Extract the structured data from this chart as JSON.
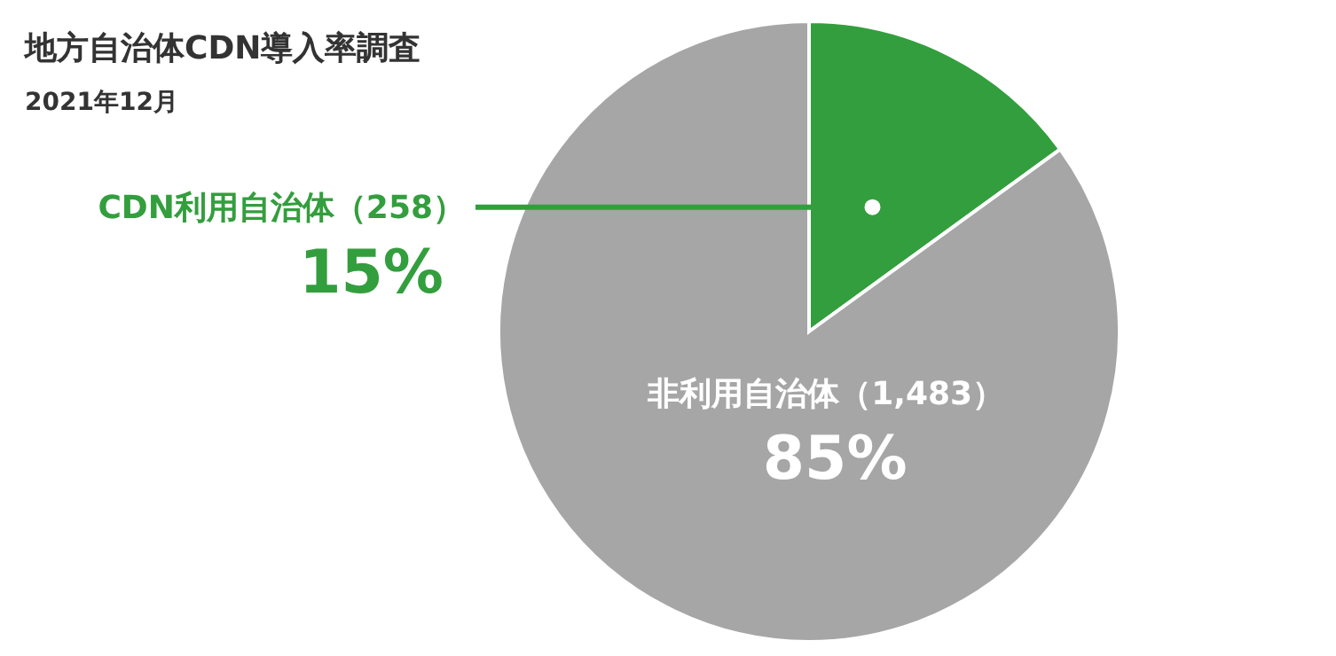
{
  "chart_data": {
    "type": "pie",
    "title": "地方自治体CDN導入率調査",
    "subtitle": "2021年12月",
    "categories": [
      "CDN利用自治体（258）",
      "非利用自治体（1,483）"
    ],
    "values": [
      15,
      85
    ],
    "colors": [
      "#339e3d",
      "#a6a6a6"
    ],
    "value_labels": [
      "15%",
      "85%"
    ]
  }
}
